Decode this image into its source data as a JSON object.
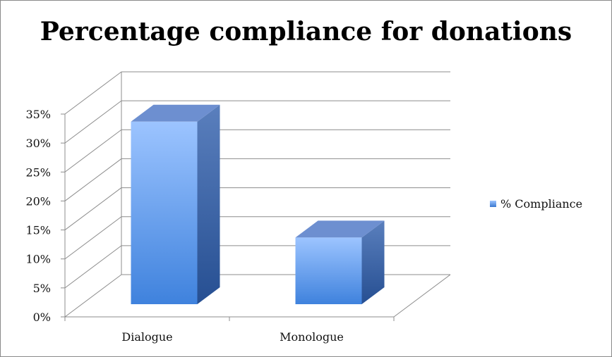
{
  "chart_data": {
    "type": "bar",
    "title": "Percentage compliance for donations",
    "categories": [
      "Dialogue",
      "Monologue"
    ],
    "series": [
      {
        "name": "% Compliance",
        "values": [
          31.5,
          11.5
        ]
      }
    ],
    "ylim": [
      0,
      35
    ],
    "yticks": [
      "0%",
      "5%",
      "10%",
      "15%",
      "20%",
      "25%",
      "30%",
      "35%"
    ],
    "grid": true,
    "legend_position": "right",
    "style": "3d",
    "colors": {
      "bar_front_top": "#9cc4ff",
      "bar_front_bottom": "#3f82dd",
      "bar_side": "#2f5fa3",
      "bar_top": "#6d8fd0"
    }
  }
}
